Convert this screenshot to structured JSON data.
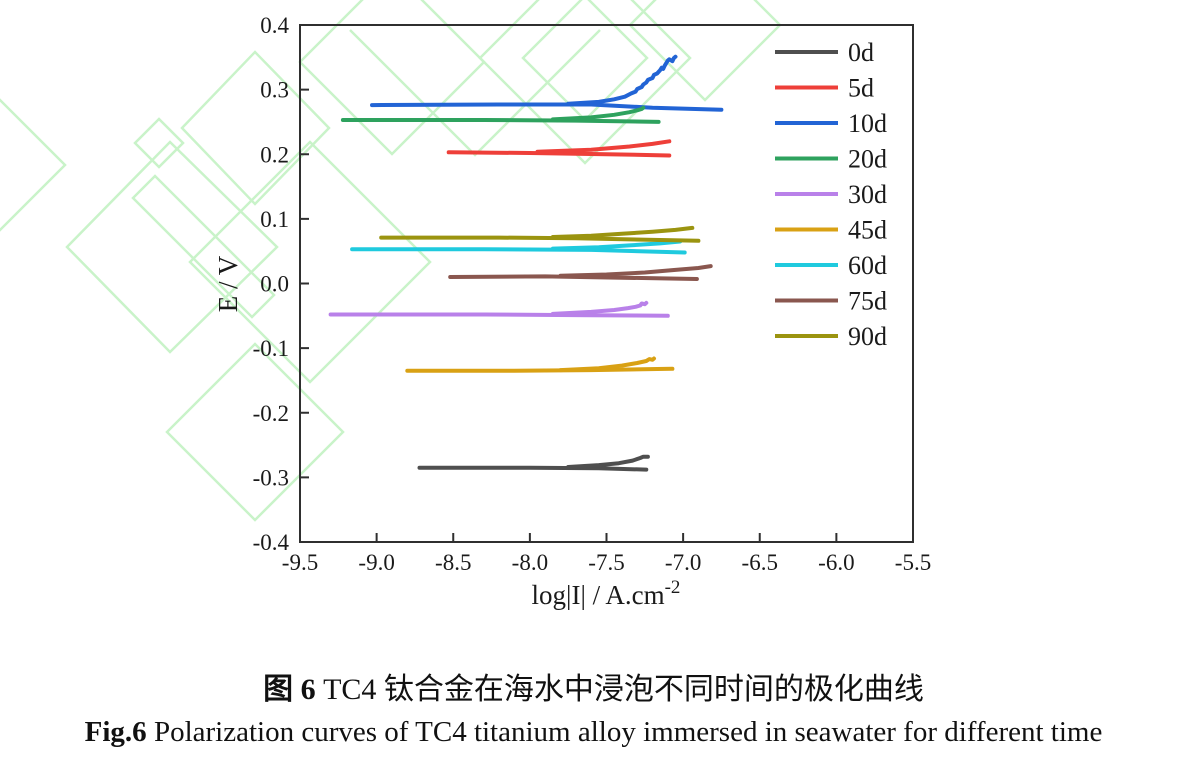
{
  "watermark": {
    "color": "#c9f3c9"
  },
  "figure": {
    "caption_zh_bold": "图 6",
    "caption_zh_rest": " TC4 钛合金在海水中浸泡不同时间的极化曲线",
    "caption_en_bold": "Fig.6",
    "caption_en_rest": " Polarization curves of TC4 titanium alloy immersed in seawater for different time"
  },
  "chart_data": {
    "type": "line",
    "title": "",
    "xlabel": "log|I| / A.cm-2",
    "xlabel_main": "log|I| / A.cm",
    "xlabel_sup": "-2",
    "ylabel": "E / V",
    "xlim": [
      -9.5,
      -5.5
    ],
    "ylim": [
      -0.4,
      0.4
    ],
    "grid": false,
    "legend_position": "upper right",
    "axis_color": "#2f2f2f",
    "x_ticks": [
      {
        "v": -9.5,
        "label": "-9.5"
      },
      {
        "v": -9.0,
        "label": "-9.0"
      },
      {
        "v": -8.5,
        "label": "-8.5"
      },
      {
        "v": -8.0,
        "label": "-8.0"
      },
      {
        "v": -7.5,
        "label": "-7.5"
      },
      {
        "v": -7.0,
        "label": "-7.0"
      },
      {
        "v": -6.5,
        "label": "-6.5"
      },
      {
        "v": -6.0,
        "label": "-6.0"
      },
      {
        "v": -5.5,
        "label": "-5.5"
      }
    ],
    "y_ticks": [
      {
        "v": 0.4,
        "label": "0.4"
      },
      {
        "v": 0.3,
        "label": "0.3"
      },
      {
        "v": 0.2,
        "label": "0.2"
      },
      {
        "v": 0.1,
        "label": "0.1"
      },
      {
        "v": 0.0,
        "label": "0.0"
      },
      {
        "v": -0.1,
        "label": "-0.1"
      },
      {
        "v": -0.2,
        "label": "-0.2"
      },
      {
        "v": -0.3,
        "label": "-0.3"
      },
      {
        "v": -0.4,
        "label": "-0.4"
      }
    ],
    "series": [
      {
        "name": "0d",
        "color": "#4f4f4f",
        "ecorr": -0.285,
        "main": [
          [
            -8.72,
            -0.285
          ],
          [
            -8.0,
            -0.285
          ],
          [
            -7.55,
            -0.286
          ],
          [
            -7.24,
            -0.288
          ]
        ],
        "branch": [
          [
            -7.75,
            -0.284
          ],
          [
            -7.55,
            -0.281
          ],
          [
            -7.42,
            -0.278
          ],
          [
            -7.33,
            -0.274
          ],
          [
            -7.28,
            -0.27
          ],
          [
            -7.26,
            -0.268
          ],
          [
            -7.23,
            -0.268
          ]
        ]
      },
      {
        "name": "5d",
        "color": "#ee3f39",
        "ecorr": 0.202,
        "main": [
          [
            -8.53,
            0.203
          ],
          [
            -8.0,
            0.202
          ],
          [
            -7.5,
            0.2
          ],
          [
            -7.09,
            0.198
          ]
        ],
        "branch": [
          [
            -7.95,
            0.204
          ],
          [
            -7.6,
            0.207
          ],
          [
            -7.35,
            0.212
          ],
          [
            -7.2,
            0.216
          ],
          [
            -7.09,
            0.22
          ]
        ]
      },
      {
        "name": "10d",
        "color": "#2264d5",
        "ecorr": 0.276,
        "main": [
          [
            -9.03,
            0.276
          ],
          [
            -8.2,
            0.277
          ],
          [
            -7.6,
            0.277
          ],
          [
            -7.2,
            0.272
          ],
          [
            -6.75,
            0.269
          ]
        ],
        "branch": [
          [
            -7.75,
            0.278
          ],
          [
            -7.55,
            0.281
          ],
          [
            -7.45,
            0.285
          ],
          [
            -7.38,
            0.289
          ],
          [
            -7.34,
            0.294
          ],
          [
            -7.31,
            0.297
          ],
          [
            -7.3,
            0.301
          ],
          [
            -7.27,
            0.304
          ],
          [
            -7.26,
            0.308
          ],
          [
            -7.24,
            0.311
          ],
          [
            -7.23,
            0.315
          ],
          [
            -7.2,
            0.318
          ],
          [
            -7.19,
            0.323
          ],
          [
            -7.17,
            0.325
          ],
          [
            -7.15,
            0.33
          ],
          [
            -7.14,
            0.334
          ],
          [
            -7.13,
            0.332
          ],
          [
            -7.12,
            0.337
          ],
          [
            -7.11,
            0.341
          ],
          [
            -7.1,
            0.345
          ],
          [
            -7.09,
            0.347
          ],
          [
            -7.07,
            0.344
          ],
          [
            -7.06,
            0.349
          ],
          [
            -7.05,
            0.351
          ]
        ]
      },
      {
        "name": "20d",
        "color": "#2ea25e",
        "ecorr": 0.253,
        "main": [
          [
            -9.22,
            0.253
          ],
          [
            -8.3,
            0.253
          ],
          [
            -7.7,
            0.252
          ],
          [
            -7.16,
            0.25
          ]
        ],
        "branch": [
          [
            -7.85,
            0.254
          ],
          [
            -7.6,
            0.257
          ],
          [
            -7.45,
            0.261
          ],
          [
            -7.35,
            0.265
          ],
          [
            -7.3,
            0.268
          ],
          [
            -7.27,
            0.27
          ],
          [
            -7.26,
            0.272
          ]
        ]
      },
      {
        "name": "30d",
        "color": "#b981e9",
        "ecorr": -0.048,
        "main": [
          [
            -9.3,
            -0.048
          ],
          [
            -8.3,
            -0.048
          ],
          [
            -7.6,
            -0.049
          ],
          [
            -7.1,
            -0.05
          ]
        ],
        "branch": [
          [
            -7.85,
            -0.047
          ],
          [
            -7.6,
            -0.044
          ],
          [
            -7.45,
            -0.041
          ],
          [
            -7.36,
            -0.038
          ],
          [
            -7.31,
            -0.036
          ],
          [
            -7.28,
            -0.034
          ],
          [
            -7.27,
            -0.031
          ],
          [
            -7.25,
            -0.032
          ],
          [
            -7.24,
            -0.03
          ]
        ]
      },
      {
        "name": "45d",
        "color": "#d9a114",
        "ecorr": -0.134,
        "main": [
          [
            -8.8,
            -0.135
          ],
          [
            -8.1,
            -0.135
          ],
          [
            -7.6,
            -0.134
          ],
          [
            -7.07,
            -0.132
          ]
        ],
        "branch": [
          [
            -7.8,
            -0.134
          ],
          [
            -7.55,
            -0.131
          ],
          [
            -7.4,
            -0.127
          ],
          [
            -7.3,
            -0.123
          ],
          [
            -7.24,
            -0.12
          ],
          [
            -7.22,
            -0.117
          ],
          [
            -7.2,
            -0.118
          ],
          [
            -7.19,
            -0.116
          ]
        ]
      },
      {
        "name": "60d",
        "color": "#1fcade",
        "ecorr": 0.053,
        "main": [
          [
            -9.16,
            0.053
          ],
          [
            -8.3,
            0.053
          ],
          [
            -7.6,
            0.052
          ],
          [
            -6.99,
            0.048
          ]
        ],
        "branch": [
          [
            -7.85,
            0.054
          ],
          [
            -7.55,
            0.056
          ],
          [
            -7.35,
            0.059
          ],
          [
            -7.15,
            0.062
          ],
          [
            -7.02,
            0.065
          ]
        ]
      },
      {
        "name": "75d",
        "color": "#8a574f",
        "ecorr": 0.011,
        "main": [
          [
            -8.52,
            0.01
          ],
          [
            -7.9,
            0.011
          ],
          [
            -7.4,
            0.009
          ],
          [
            -6.91,
            0.007
          ]
        ],
        "branch": [
          [
            -7.8,
            0.012
          ],
          [
            -7.5,
            0.014
          ],
          [
            -7.25,
            0.017
          ],
          [
            -7.05,
            0.021
          ],
          [
            -6.9,
            0.024
          ],
          [
            -6.82,
            0.027
          ]
        ]
      },
      {
        "name": "90d",
        "color": "#9b9410",
        "ecorr": 0.07,
        "main": [
          [
            -8.97,
            0.071
          ],
          [
            -8.2,
            0.071
          ],
          [
            -7.7,
            0.07
          ],
          [
            -6.9,
            0.066
          ]
        ],
        "branch": [
          [
            -7.85,
            0.072
          ],
          [
            -7.6,
            0.074
          ],
          [
            -7.4,
            0.077
          ],
          [
            -7.2,
            0.08
          ],
          [
            -7.05,
            0.083
          ],
          [
            -6.94,
            0.086
          ]
        ]
      }
    ]
  }
}
